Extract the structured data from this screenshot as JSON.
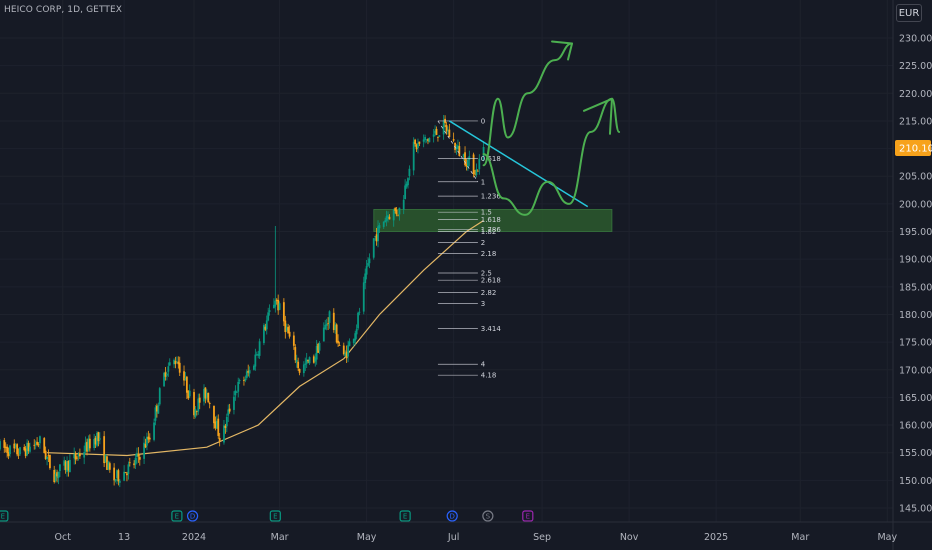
{
  "header": {
    "symbol": "HEICO CORP, 1D, GETTEX"
  },
  "currency": "EUR",
  "last_price": "210.10",
  "colors": {
    "up": "#089981",
    "down": "#f7a21b",
    "ma": "#e3b765",
    "trendline": "#26c6da",
    "zone": "#2b5a2e",
    "drawing": "#4caf50",
    "price_tag": "#f7a21b",
    "grid": "#1e222d"
  },
  "chart_data": {
    "type": "candlestick",
    "title": "HEICO CORP, 1D, GETTEX",
    "y_ticks": [
      145,
      150,
      155,
      160,
      165,
      170,
      175,
      180,
      185,
      190,
      195,
      200,
      205,
      210,
      215,
      220,
      225,
      230
    ],
    "y_tick_labels": [
      "145.00",
      "150.00",
      "155.00",
      "160.00",
      "165.00",
      "170.00",
      "175.00",
      "180.00",
      "185.00",
      "190.00",
      "195.00",
      "200.00",
      "205.00",
      "210.00",
      "215.00",
      "220.00",
      "225.00",
      "230.00"
    ],
    "ylim": [
      143,
      232
    ],
    "x_labels": [
      {
        "label": "Oct",
        "t": "2023-10-01"
      },
      {
        "label": "13",
        "t": "2023-11-13"
      },
      {
        "label": "2024",
        "t": "2024-01-01"
      },
      {
        "label": "Mar",
        "t": "2024-03-01"
      },
      {
        "label": "May",
        "t": "2024-05-01"
      },
      {
        "label": "Jul",
        "t": "2024-07-01"
      },
      {
        "label": "Sep",
        "t": "2024-09-01"
      },
      {
        "label": "Nov",
        "t": "2024-11-01"
      },
      {
        "label": "2025",
        "t": "2025-01-01"
      },
      {
        "label": "Mar",
        "t": "2025-03-01"
      },
      {
        "label": "May",
        "t": "2025-05-01"
      }
    ],
    "xlim": [
      "2023-08-18",
      "2025-05-05"
    ],
    "price_path": [
      [
        "2023-08-18",
        156
      ],
      [
        "2023-09-01",
        155
      ],
      [
        "2023-09-15",
        157
      ],
      [
        "2023-09-25",
        151
      ],
      [
        "2023-10-10",
        154
      ],
      [
        "2023-10-25",
        158
      ],
      [
        "2023-11-05",
        150
      ],
      [
        "2023-11-20",
        153
      ],
      [
        "2023-12-01",
        158
      ],
      [
        "2023-12-12",
        170
      ],
      [
        "2023-12-20",
        172
      ],
      [
        "2024-01-01",
        163
      ],
      [
        "2024-01-10",
        166
      ],
      [
        "2024-01-20",
        157
      ],
      [
        "2024-01-29",
        166
      ],
      [
        "2024-02-10",
        170
      ],
      [
        "2024-02-20",
        178
      ],
      [
        "2024-02-27",
        183
      ],
      [
        "2024-03-05",
        178
      ],
      [
        "2024-03-15",
        170
      ],
      [
        "2024-03-25",
        172
      ],
      [
        "2024-04-05",
        180
      ],
      [
        "2024-04-15",
        172
      ],
      [
        "2024-04-24",
        178
      ],
      [
        "2024-05-05",
        193
      ],
      [
        "2024-05-15",
        198
      ],
      [
        "2024-05-25",
        199
      ],
      [
        "2024-06-02",
        210
      ],
      [
        "2024-06-15",
        212
      ],
      [
        "2024-06-25",
        214
      ],
      [
        "2024-07-03",
        210
      ],
      [
        "2024-07-10",
        208
      ],
      [
        "2024-07-17",
        206
      ],
      [
        "2024-07-22",
        210
      ]
    ],
    "moving_average": [
      [
        "2023-09-20",
        155
      ],
      [
        "2023-11-15",
        154.5
      ],
      [
        "2024-01-10",
        156
      ],
      [
        "2024-02-15",
        160
      ],
      [
        "2024-03-15",
        167
      ],
      [
        "2024-04-15",
        172
      ],
      [
        "2024-05-10",
        180
      ],
      [
        "2024-06-10",
        188
      ],
      [
        "2024-07-10",
        195
      ],
      [
        "2024-07-22",
        197
      ]
    ],
    "spike": {
      "t": "2024-02-27",
      "value": 196
    },
    "support_zone": {
      "t_start": "2024-05-06",
      "t_end": "2024-10-20",
      "y_low": 195,
      "y_high": 199
    },
    "trendline": {
      "t0": "2024-06-28",
      "v0": 215,
      "t1": "2024-10-03",
      "v1": 199.5
    },
    "fib_extension": {
      "t_start": "2024-06-20",
      "t_end": "2024-07-18",
      "label_t": "2024-07-20",
      "p0": 215,
      "p1": 204,
      "levels": [
        "0",
        "0.618",
        "1",
        "1.236",
        "1.5",
        "1.618",
        "1.786",
        "1.82",
        "2",
        "2.18",
        "2.5",
        "2.618",
        "2.82",
        "3",
        "3.414",
        "4",
        "4.18"
      ]
    },
    "projection_paths": [
      [
        [
          "2024-07-22",
          207
        ],
        [
          "2024-08-01",
          219
        ],
        [
          "2024-08-08",
          212
        ],
        [
          "2024-08-22",
          220
        ],
        [
          "2024-09-10",
          226
        ],
        [
          "2024-09-22",
          229
        ]
      ],
      [
        [
          "2024-07-22",
          209
        ],
        [
          "2024-08-05",
          201
        ],
        [
          "2024-08-20",
          198
        ],
        [
          "2024-09-05",
          204
        ],
        [
          "2024-09-20",
          200
        ],
        [
          "2024-10-05",
          213
        ],
        [
          "2024-10-20",
          219
        ],
        [
          "2024-10-25",
          213
        ]
      ]
    ],
    "events": [
      {
        "t": "2023-08-20",
        "type": "E",
        "color": "#089981"
      },
      {
        "t": "2023-12-20",
        "type": "E",
        "color": "#089981"
      },
      {
        "t": "2023-12-31",
        "type": "D",
        "color": "#2962ff"
      },
      {
        "t": "2024-02-27",
        "type": "E",
        "color": "#089981"
      },
      {
        "t": "2024-05-28",
        "type": "E",
        "color": "#089981"
      },
      {
        "t": "2024-06-30",
        "type": "D",
        "color": "#2962ff"
      },
      {
        "t": "2024-07-25",
        "type": "S",
        "color": "#787b86"
      },
      {
        "t": "2024-08-22",
        "type": "E",
        "color": "#9c27b0"
      }
    ]
  }
}
